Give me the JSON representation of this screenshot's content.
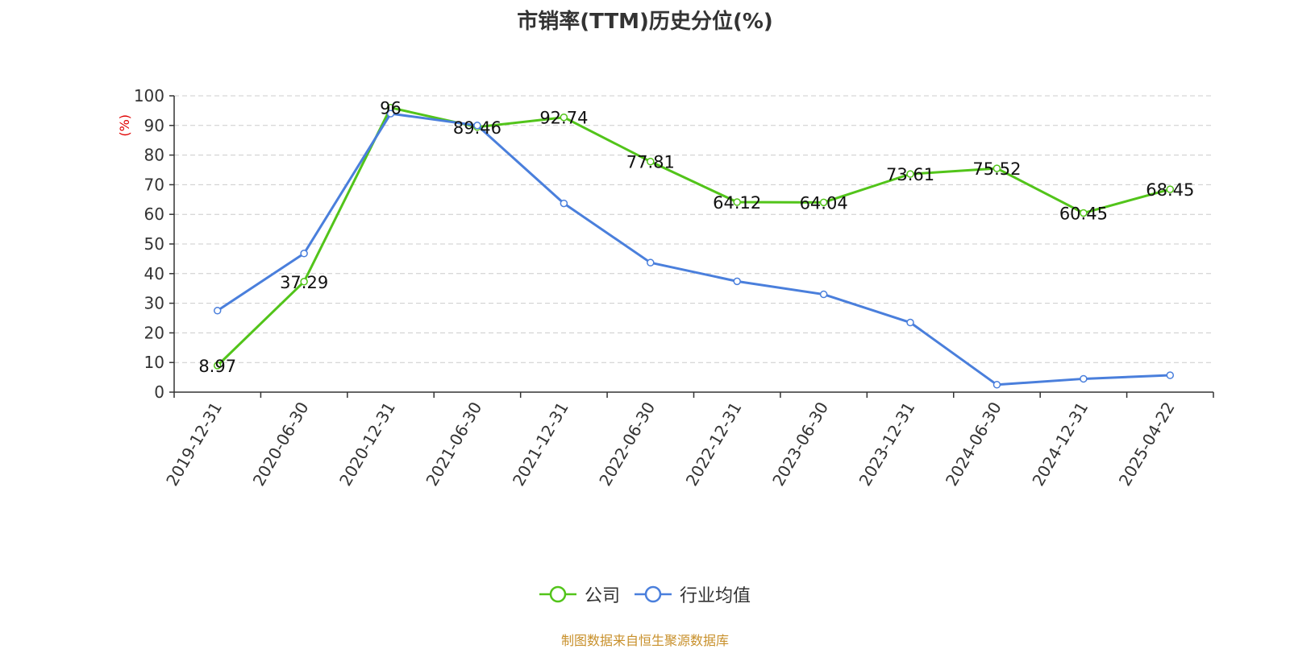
{
  "title": "市销率(TTM)历史分位(%)",
  "source": "制图数据来自恒生聚源数据库",
  "colors": {
    "company": "#52c41a",
    "industry": "#4a7fdc",
    "unit": "#e00000"
  },
  "legend": [
    {
      "name": "公司",
      "color": "#52c41a"
    },
    {
      "name": "行业均值",
      "color": "#4a7fdc"
    }
  ],
  "chart_data": {
    "type": "line",
    "title": "市销率(TTM)历史分位(%)",
    "ylabel": "(%)",
    "xlabel": "",
    "ylim": [
      0,
      100
    ],
    "yticks": [
      0,
      10,
      20,
      30,
      40,
      50,
      60,
      70,
      80,
      90,
      100
    ],
    "grid": true,
    "legend_position": "bottom",
    "categories": [
      "2019-12-31",
      "2020-06-30",
      "2020-12-31",
      "2021-06-30",
      "2021-12-31",
      "2022-06-30",
      "2022-12-31",
      "2023-06-30",
      "2023-12-31",
      "2024-06-30",
      "2024-12-31",
      "2025-04-22"
    ],
    "series": [
      {
        "name": "公司",
        "color": "#52c41a",
        "values": [
          8.97,
          37.29,
          96,
          89.46,
          92.74,
          77.81,
          64.12,
          64.04,
          73.61,
          75.52,
          60.45,
          68.45
        ],
        "labels": [
          "8.97",
          "37.29",
          "96",
          "89.46",
          "92.74",
          "77.81",
          "64.12",
          "64.04",
          "73.61",
          "75.52",
          "60.45",
          "68.45"
        ]
      },
      {
        "name": "行业均值",
        "color": "#4a7fdc",
        "values": [
          27.5,
          46.8,
          94.0,
          90.0,
          63.7,
          43.7,
          37.4,
          33.0,
          23.5,
          2.5,
          4.5,
          5.7
        ]
      }
    ]
  }
}
